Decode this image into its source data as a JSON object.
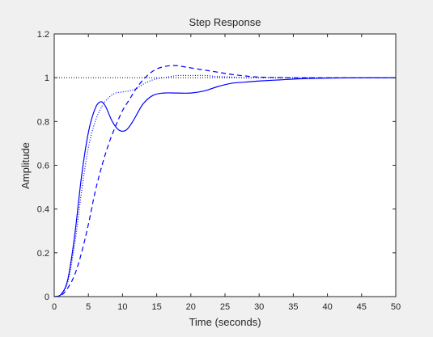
{
  "chart_data": {
    "type": "line",
    "title": "Step Response",
    "xlabel": "Time (seconds)",
    "ylabel": "Amplitude",
    "xlim": [
      0,
      50
    ],
    "ylim": [
      0,
      1.2
    ],
    "xticks": [
      "0",
      "5",
      "10",
      "15",
      "20",
      "25",
      "30",
      "35",
      "40",
      "45",
      "50"
    ],
    "yticks": [
      "0",
      "0.2",
      "0.4",
      "0.6",
      "0.8",
      "1",
      "1.2"
    ],
    "grid": false,
    "legend": "none",
    "reference_line": {
      "y": 1,
      "style": "dotted",
      "color": "#000000"
    },
    "series": [
      {
        "style": "solid",
        "color": "#0000ff",
        "x": [
          0,
          1,
          2,
          3,
          4,
          5,
          6,
          6.8,
          7.5,
          8.5,
          9.5,
          10.5,
          11.5,
          13,
          14.5,
          16,
          18,
          20,
          22,
          24,
          26,
          28,
          30,
          33,
          36,
          40,
          45,
          50
        ],
        "y": [
          0,
          0.01,
          0.08,
          0.28,
          0.55,
          0.75,
          0.86,
          0.89,
          0.87,
          0.8,
          0.76,
          0.76,
          0.8,
          0.88,
          0.92,
          0.93,
          0.93,
          0.93,
          0.94,
          0.96,
          0.975,
          0.98,
          0.985,
          0.99,
          0.995,
          0.998,
          1.0,
          1.0
        ]
      },
      {
        "style": "dashed",
        "color": "#0000ff",
        "x": [
          0,
          1,
          2,
          3,
          4,
          5,
          6,
          7,
          8,
          9,
          10,
          11,
          12,
          13,
          14,
          15,
          16,
          17,
          18,
          19,
          20,
          22,
          24,
          26,
          28,
          30,
          35,
          40,
          45,
          50
        ],
        "y": [
          0,
          0.005,
          0.04,
          0.1,
          0.2,
          0.33,
          0.48,
          0.6,
          0.7,
          0.78,
          0.85,
          0.9,
          0.95,
          0.99,
          1.02,
          1.04,
          1.05,
          1.055,
          1.055,
          1.05,
          1.045,
          1.035,
          1.025,
          1.015,
          1.008,
          1.003,
          1.0,
          1.0,
          1.0,
          1.0
        ]
      },
      {
        "style": "dotted",
        "color": "#0000ff",
        "x": [
          0,
          1,
          2,
          3,
          4,
          5,
          6,
          7,
          8,
          9,
          10,
          11,
          12,
          13,
          14,
          15,
          16,
          17,
          18,
          20,
          22,
          24,
          26,
          28,
          30,
          35,
          40,
          45,
          50
        ],
        "y": [
          0,
          0.01,
          0.07,
          0.24,
          0.48,
          0.68,
          0.8,
          0.87,
          0.91,
          0.93,
          0.935,
          0.94,
          0.95,
          0.97,
          0.985,
          0.995,
          1.0,
          1.005,
          1.01,
          1.01,
          1.01,
          1.005,
          1.003,
          1.0,
          1.0,
          1.0,
          1.0,
          1.0,
          1.0
        ]
      }
    ]
  }
}
